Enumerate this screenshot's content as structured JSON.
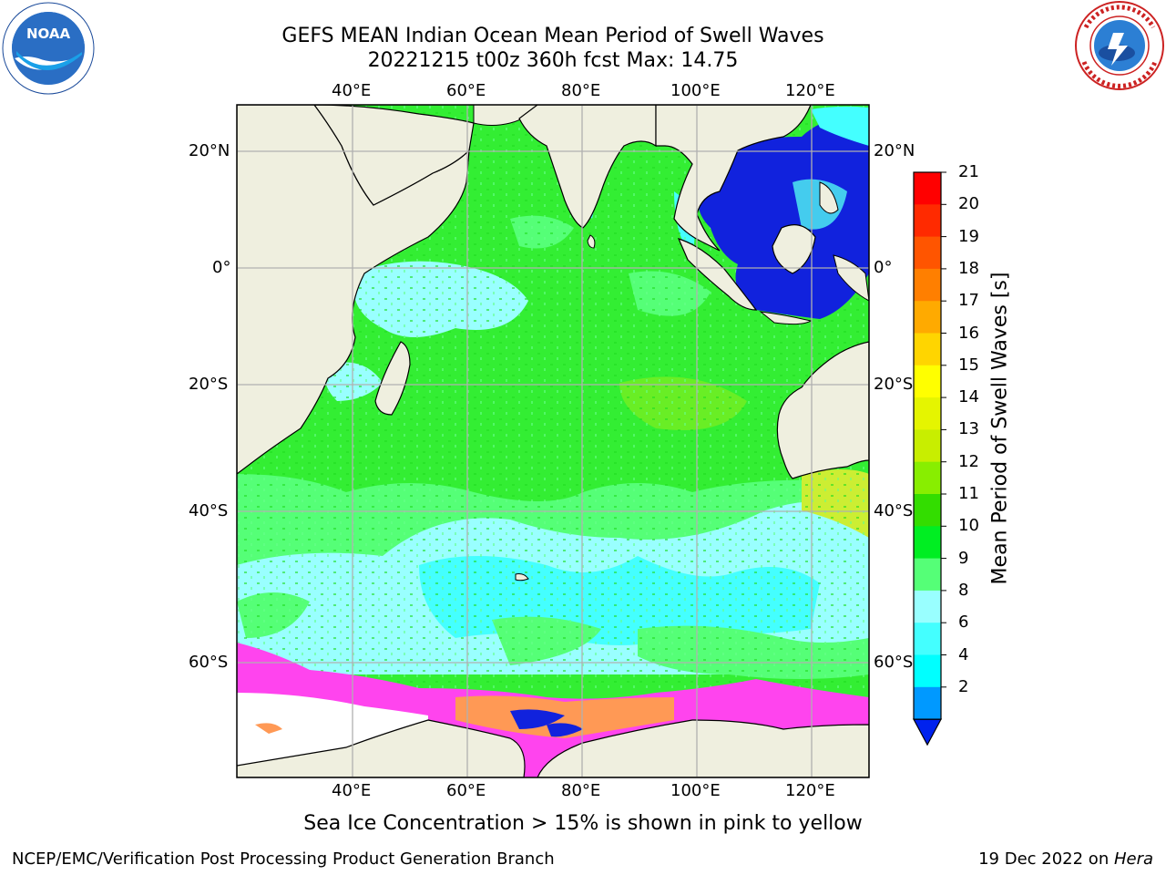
{
  "header": {
    "title_line1": "GEFS MEAN Indian Ocean Mean Period of Swell Waves",
    "title_line2": "20221215 t00z 360h fcst   Max: 14.75"
  },
  "logos": {
    "left": "noaa-logo",
    "left_text": "NOAA",
    "right": "nws-logo"
  },
  "map": {
    "lon_ticks": [
      "40°E",
      "60°E",
      "80°E",
      "100°E",
      "120°E"
    ],
    "lat_ticks_left": [
      "20°N",
      "0°",
      "20°S",
      "40°S",
      "60°S"
    ],
    "lat_ticks_right": [
      "20°N",
      "0°",
      "20°S",
      "40°S",
      "60°S"
    ],
    "colors": {
      "ocean_dominant": "#33ee33",
      "ocean_mid": "#55ff77",
      "ocean_low": "#99ffff",
      "ocean_cyan": "#44ffff",
      "deep_blue": "#1122dd",
      "land": "#efefdf",
      "ice": "#ff44ee"
    }
  },
  "colorbar": {
    "title": "Mean Period of Swell Waves [s]",
    "levels": [
      "21",
      "20",
      "19",
      "18",
      "17",
      "16",
      "15",
      "14",
      "13",
      "12",
      "11",
      "10",
      "9",
      "8",
      "6",
      "4",
      "2"
    ],
    "colors": [
      "#ff0000",
      "#ff2a00",
      "#ff5500",
      "#ff7f00",
      "#ffaa00",
      "#ffd500",
      "#ffff00",
      "#e5f500",
      "#c8ee00",
      "#88ee00",
      "#33dd00",
      "#00ee22",
      "#55ff77",
      "#99ffff",
      "#44ffff",
      "#00ffff",
      "#0099ff",
      "#0022ee"
    ]
  },
  "caption": "Sea Ice Concentration > 15% is shown in pink to yellow",
  "footer": {
    "left": "NCEP/EMC/Verification Post Processing Product Generation Branch",
    "right_date": "19 Dec 2022 on ",
    "right_machine": "Hera"
  }
}
